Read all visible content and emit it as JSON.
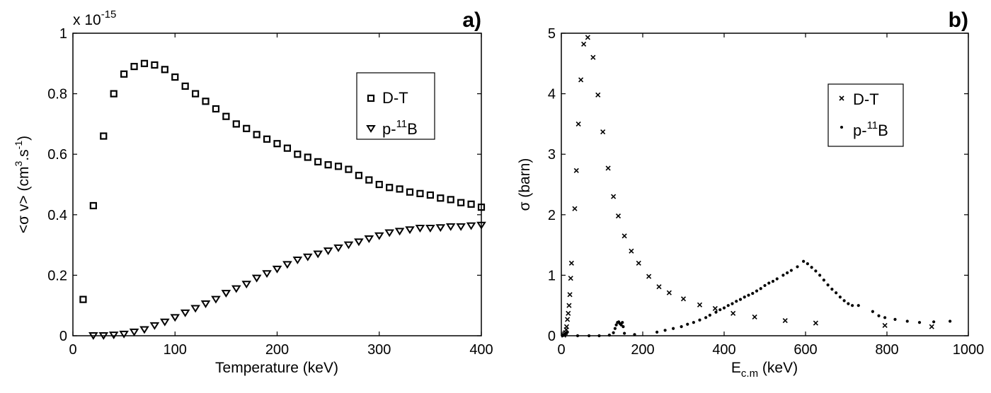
{
  "chart_data": [
    {
      "type": "scatter",
      "panel_label": "a)",
      "xlabel": "Temperature (keV)",
      "ylabel": {
        "main": "<σ v> (cm",
        "sup1": "3",
        "mid": ".s",
        "sup2": "-1",
        "end": ")"
      },
      "y_multiplier": {
        "base": "x 10",
        "exp": "-15"
      },
      "xlim": [
        0,
        400
      ],
      "ylim": [
        0,
        1
      ],
      "xticks": [
        "0",
        "100",
        "200",
        "300",
        "400"
      ],
      "yticks": [
        "0",
        "0.2",
        "0.4",
        "0.6",
        "0.8",
        "1"
      ],
      "legend_position": "top-right",
      "series": [
        {
          "name": "D-T",
          "name_main": "D-T",
          "marker": "square",
          "x": [
            10,
            20,
            30,
            40,
            50,
            60,
            70,
            80,
            90,
            100,
            110,
            120,
            130,
            140,
            150,
            160,
            170,
            180,
            190,
            200,
            210,
            220,
            230,
            240,
            250,
            260,
            270,
            280,
            290,
            300,
            310,
            320,
            330,
            340,
            350,
            360,
            370,
            380,
            390,
            400
          ],
          "y": [
            0.12,
            0.43,
            0.66,
            0.8,
            0.865,
            0.89,
            0.9,
            0.895,
            0.88,
            0.855,
            0.825,
            0.8,
            0.775,
            0.75,
            0.725,
            0.7,
            0.685,
            0.665,
            0.65,
            0.635,
            0.62,
            0.6,
            0.59,
            0.575,
            0.565,
            0.56,
            0.55,
            0.53,
            0.515,
            0.5,
            0.49,
            0.485,
            0.475,
            0.47,
            0.465,
            0.455,
            0.45,
            0.44,
            0.435,
            0.425
          ]
        },
        {
          "name": "p-11B",
          "name_main": "p-",
          "name_sup": "11",
          "name_end": "B",
          "marker": "triangle-down",
          "x": [
            20,
            30,
            40,
            50,
            60,
            70,
            80,
            90,
            100,
            110,
            120,
            130,
            140,
            150,
            160,
            170,
            180,
            190,
            200,
            210,
            220,
            230,
            240,
            250,
            260,
            270,
            280,
            290,
            300,
            310,
            320,
            330,
            340,
            350,
            360,
            370,
            380,
            390,
            400
          ],
          "y": [
            0.0,
            0.0,
            0.002,
            0.005,
            0.012,
            0.02,
            0.033,
            0.045,
            0.06,
            0.075,
            0.09,
            0.105,
            0.12,
            0.14,
            0.155,
            0.17,
            0.19,
            0.205,
            0.22,
            0.235,
            0.25,
            0.26,
            0.27,
            0.28,
            0.29,
            0.3,
            0.31,
            0.32,
            0.33,
            0.34,
            0.345,
            0.35,
            0.355,
            0.355,
            0.357,
            0.36,
            0.36,
            0.363,
            0.365
          ]
        }
      ]
    },
    {
      "type": "scatter",
      "panel_label": "b)",
      "xlabel": {
        "main": "E",
        "sub": "c.m",
        "end": " (keV)"
      },
      "ylabel": "σ (barn)",
      "xlim": [
        0,
        1000
      ],
      "ylim": [
        0,
        5
      ],
      "xticks": [
        "0",
        "200",
        "400",
        "600",
        "800",
        "1000"
      ],
      "yticks": [
        "0",
        "1",
        "2",
        "3",
        "4",
        "5"
      ],
      "legend_position": "top-right",
      "series": [
        {
          "name": "D-T",
          "name_main": "D-T",
          "marker": "x",
          "x": [
            6,
            8,
            10,
            12,
            13,
            15,
            17,
            19,
            21,
            23,
            25,
            33,
            37,
            42,
            48,
            55,
            65,
            78,
            90,
            102,
            115,
            128,
            140,
            155,
            172,
            190,
            215,
            240,
            265,
            300,
            340,
            378,
            422,
            475,
            550,
            625,
            795,
            910
          ],
          "y": [
            0.01,
            0.03,
            0.05,
            0.1,
            0.15,
            0.27,
            0.37,
            0.5,
            0.68,
            0.95,
            1.2,
            2.1,
            2.73,
            3.5,
            4.23,
            4.82,
            4.93,
            4.6,
            3.98,
            3.37,
            2.77,
            2.3,
            1.98,
            1.65,
            1.4,
            1.2,
            0.98,
            0.81,
            0.71,
            0.61,
            0.51,
            0.45,
            0.37,
            0.31,
            0.25,
            0.21,
            0.17,
            0.15
          ]
        },
        {
          "name": "p-11B",
          "name_main": "p-",
          "name_sup": "11",
          "name_end": "B",
          "marker": "dot",
          "x": [
            3,
            6,
            9,
            12,
            15,
            40,
            68,
            93,
            118,
            128,
            132,
            135,
            138,
            141,
            144,
            147,
            150,
            152,
            155,
            180,
            235,
            255,
            275,
            295,
            310,
            325,
            340,
            355,
            365,
            380,
            390,
            400,
            410,
            420,
            430,
            440,
            450,
            460,
            470,
            480,
            490,
            500,
            510,
            520,
            530,
            545,
            555,
            565,
            580,
            595,
            605,
            615,
            625,
            635,
            645,
            655,
            665,
            675,
            685,
            695,
            705,
            715,
            730,
            765,
            780,
            795,
            820,
            850,
            880,
            915,
            955
          ],
          "y": [
            0,
            0.01,
            0.02,
            0.04,
            0.06,
            0,
            0,
            0,
            0.01,
            0.05,
            0.12,
            0.18,
            0.22,
            0.23,
            0.2,
            0.18,
            0.22,
            0.15,
            0.04,
            0.02,
            0.06,
            0.09,
            0.12,
            0.15,
            0.19,
            0.22,
            0.26,
            0.3,
            0.34,
            0.39,
            0.43,
            0.46,
            0.5,
            0.53,
            0.57,
            0.6,
            0.64,
            0.67,
            0.7,
            0.74,
            0.78,
            0.83,
            0.87,
            0.9,
            0.94,
            1.0,
            1.04,
            1.08,
            1.14,
            1.23,
            1.19,
            1.13,
            1.07,
            1.0,
            0.92,
            0.84,
            0.77,
            0.71,
            0.64,
            0.58,
            0.53,
            0.5,
            0.5,
            0.4,
            0.33,
            0.3,
            0.27,
            0.24,
            0.22,
            0.23,
            0.24
          ]
        }
      ]
    }
  ]
}
